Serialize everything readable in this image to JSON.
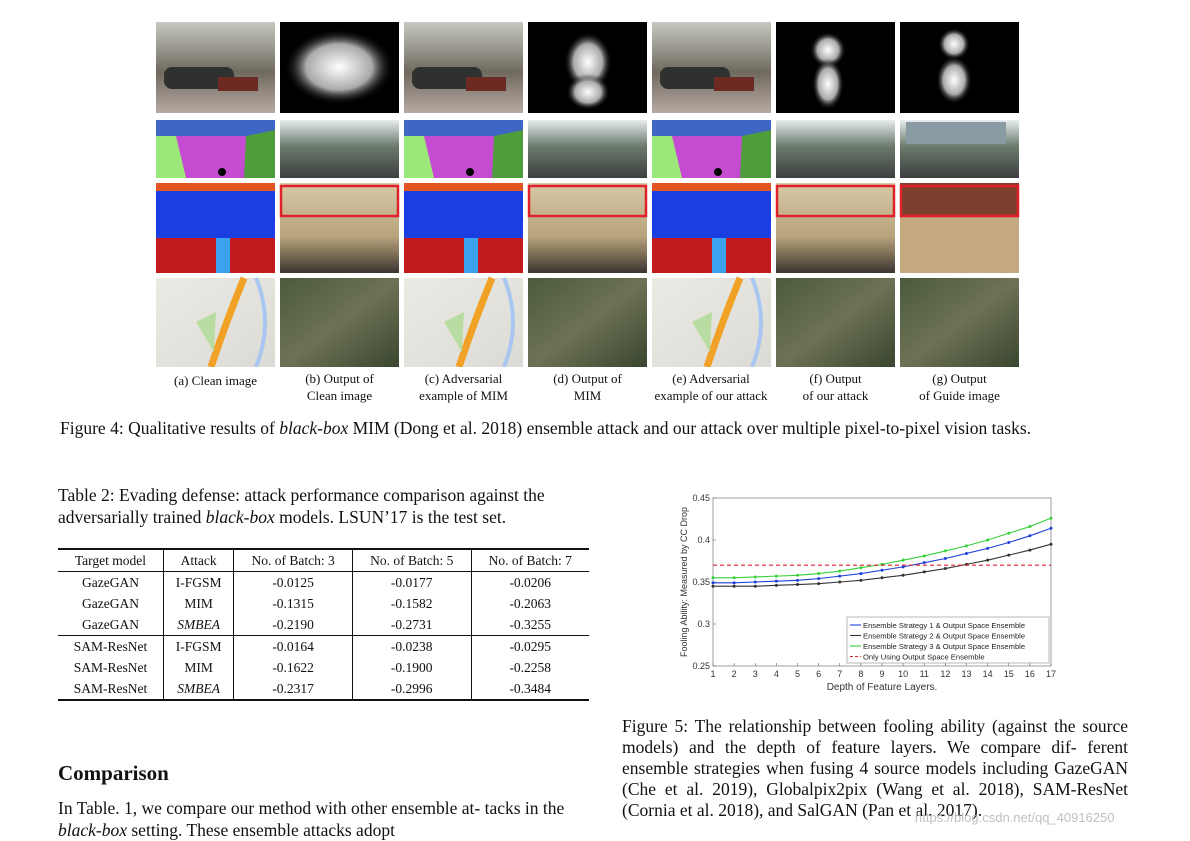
{
  "figure4": {
    "columns": [
      {
        "line1": "(a) Clean image",
        "line2": ""
      },
      {
        "line1": "(b) Output of",
        "line2": "Clean image"
      },
      {
        "line1": "(c) Adversarial",
        "line2": "example of MIM"
      },
      {
        "line1": "(d) Output of",
        "line2": "MIM"
      },
      {
        "line1": "(e) Adversarial",
        "line2": "example of our attack"
      },
      {
        "line1": "(f) Output",
        "line2": "of our attack"
      },
      {
        "line1": "(g) Output",
        "line2": "of Guide image"
      }
    ],
    "caption_label": "Figure 4:",
    "caption_pre": " Qualitative results of ",
    "caption_em": "black-box",
    "caption_post": " MIM (Dong et al. 2018) ensemble attack and our attack over multiple pixel-to-pixel vision tasks.",
    "highlight_color": "#e0212b"
  },
  "table2": {
    "caption_label": "Table 2:",
    "caption_pre": " Evading defense: attack performance comparison against the adversarially trained ",
    "caption_em": "black-box",
    "caption_post": " models. LSUN’17 is the test set.",
    "headers": [
      "Target model",
      "Attack",
      "No. of Batch: 3",
      "No. of Batch: 5",
      "No. of Batch: 7"
    ],
    "rows": [
      [
        "GazeGAN",
        "I-FGSM",
        "-0.0125",
        "-0.0177",
        "-0.0206"
      ],
      [
        "GazeGAN",
        "MIM",
        "-0.1315",
        "-0.1582",
        "-0.2063"
      ],
      [
        "GazeGAN",
        "SMBEA",
        "-0.2190",
        "-0.2731",
        "-0.3255"
      ],
      [
        "SAM-ResNet",
        "I-FGSM",
        "-0.0164",
        "-0.0238",
        "-0.0295"
      ],
      [
        "SAM-ResNet",
        "MIM",
        "-0.1622",
        "-0.1900",
        "-0.2258"
      ],
      [
        "SAM-ResNet",
        "SMBEA",
        "-0.2317",
        "-0.2996",
        "-0.3484"
      ]
    ]
  },
  "section": {
    "title": "Comparison",
    "para_pre": "In Table. 1, we compare our method with other ensemble at- tacks in the ",
    "para_em": "black-box",
    "para_post": " setting. These ensemble attacks adopt"
  },
  "figure5": {
    "caption_label": "Figure 5:",
    "caption_body": " The relationship between fooling ability (against the source models) and the depth of feature layers. We compare dif- ferent ensemble strategies when fusing 4 source models including GazeGAN (Che et al. 2019), Globalpix2pix (Wang et al. 2018), SAM-ResNet (Cornia et al. 2018), and SalGAN (Pan et al. 2017)."
  },
  "chart_data": {
    "type": "line",
    "xlabel": "Depth of Feature Layers.",
    "ylabel": "Fooling Ability: Measured by CC Drop",
    "xlim": [
      1,
      17
    ],
    "ylim": [
      0.25,
      0.45
    ],
    "xticks": [
      1,
      2,
      3,
      4,
      5,
      6,
      7,
      8,
      9,
      10,
      11,
      12,
      13,
      14,
      15,
      16,
      17
    ],
    "yticks": [
      0.25,
      0.3,
      0.35,
      0.4,
      0.45
    ],
    "ytick_labels": [
      "0.25",
      "0.3",
      "0.35",
      "0.4",
      "0.45"
    ],
    "legend_position": "bottom-right",
    "grid": false,
    "x": [
      1,
      2,
      3,
      4,
      5,
      6,
      7,
      8,
      9,
      10,
      11,
      12,
      13,
      14,
      15,
      16,
      17
    ],
    "series": [
      {
        "name": "Ensemble Strategy 1 & Output Space Ensemble",
        "color": "#1f3fd8",
        "values": [
          0.349,
          0.349,
          0.35,
          0.351,
          0.352,
          0.354,
          0.357,
          0.36,
          0.364,
          0.368,
          0.373,
          0.378,
          0.384,
          0.39,
          0.397,
          0.405,
          0.414
        ]
      },
      {
        "name": "Ensemble Strategy 2 & Output Space Ensemble",
        "color": "#333333",
        "values": [
          0.345,
          0.345,
          0.345,
          0.346,
          0.347,
          0.348,
          0.35,
          0.352,
          0.355,
          0.358,
          0.362,
          0.366,
          0.371,
          0.376,
          0.382,
          0.388,
          0.395
        ]
      },
      {
        "name": "Ensemble Strategy 3 & Output Space Ensemble",
        "color": "#37d13a",
        "values": [
          0.355,
          0.355,
          0.356,
          0.357,
          0.358,
          0.36,
          0.363,
          0.367,
          0.371,
          0.376,
          0.381,
          0.387,
          0.393,
          0.4,
          0.408,
          0.416,
          0.426
        ]
      },
      {
        "name": "Only Using Output Space Ensemble",
        "color": "#e0212b",
        "dashed": true,
        "values": [
          0.37,
          0.37,
          0.37,
          0.37,
          0.37,
          0.37,
          0.37,
          0.37,
          0.37,
          0.37,
          0.37,
          0.37,
          0.37,
          0.37,
          0.37,
          0.37,
          0.37
        ]
      }
    ]
  }
}
